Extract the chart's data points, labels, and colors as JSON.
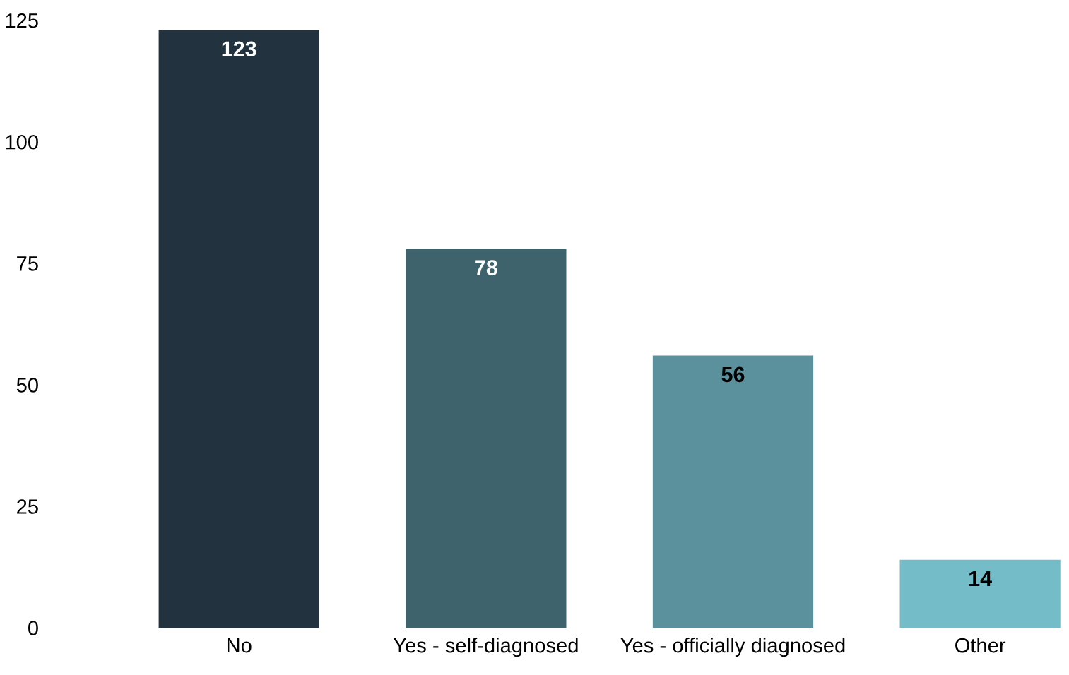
{
  "chart_data": {
    "type": "bar",
    "categories": [
      "No",
      "Yes - self-diagnosed",
      "Yes - officially diagnosed",
      "Other"
    ],
    "values": [
      123,
      78,
      56,
      14
    ],
    "colors": [
      "#22333f",
      "#3e636d",
      "#5a919c",
      "#74bcc8"
    ],
    "ylim": [
      0,
      125
    ],
    "yticks": [
      0,
      25,
      50,
      75,
      100,
      125
    ],
    "data_labels": true,
    "grid": false,
    "legend": false
  }
}
